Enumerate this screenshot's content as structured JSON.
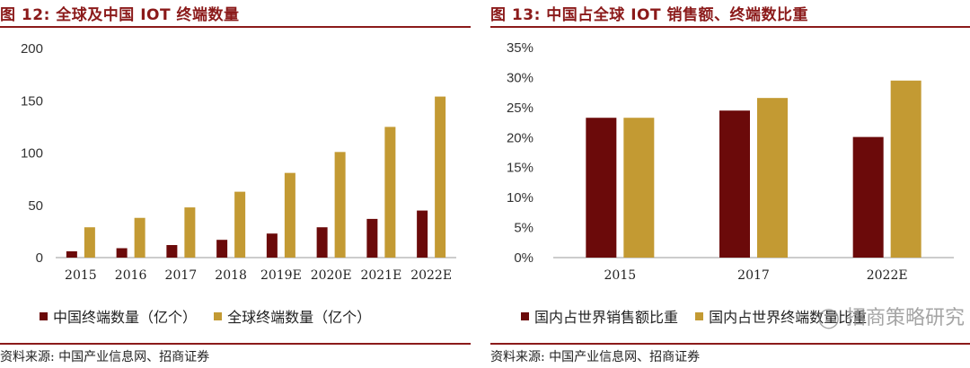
{
  "colors": {
    "series_a": "#6b0a0a",
    "series_b": "#c39a33",
    "accent": "#8b1a1a"
  },
  "left": {
    "title": "图 12:  全球及中国 IOT 终端数量",
    "source": "资料来源:  中国产业信息网、招商证券"
  },
  "right": {
    "title": "图 13:  中国占全球 IOT 销售额、终端数比重",
    "source": "资料来源:  中国产业信息网、招商证券",
    "watermark": "招商策略研究"
  },
  "chart_data": [
    {
      "type": "bar",
      "categories": [
        "2015",
        "2016",
        "2017",
        "2018",
        "2019E",
        "2020E",
        "2021E",
        "2022E"
      ],
      "series": [
        {
          "name": "中国终端数量（亿个）",
          "values": [
            6,
            9,
            12,
            17,
            23,
            29,
            37,
            45
          ]
        },
        {
          "name": "全球终端数量（亿个）",
          "values": [
            29,
            38,
            48,
            63,
            81,
            101,
            125,
            154
          ]
        }
      ],
      "yticks": [
        "0",
        "50",
        "100",
        "150",
        "200"
      ],
      "ylim": [
        0,
        200
      ],
      "grid": false,
      "legend": "bottom"
    },
    {
      "type": "bar",
      "categories": [
        "2015",
        "2017",
        "2022E"
      ],
      "series": [
        {
          "name": "国内占世界销售额比重",
          "values": [
            23.3,
            24.5,
            20.1
          ]
        },
        {
          "name": "国内占世界终端数量比重",
          "values": [
            23.3,
            26.6,
            29.5
          ]
        }
      ],
      "yticks": [
        "0%",
        "5%",
        "10%",
        "15%",
        "20%",
        "25%",
        "30%",
        "35%"
      ],
      "ylim": [
        0,
        35
      ],
      "grid": false,
      "legend": "bottom"
    }
  ]
}
